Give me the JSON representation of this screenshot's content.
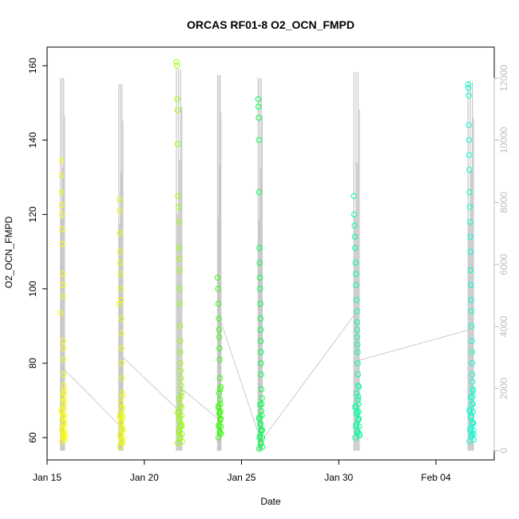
{
  "chart_data": {
    "type": "scatter",
    "title": "ORCAS RF01-8 O2_OCN_FMPD",
    "xlabel": "Date",
    "ylabel": "O2_OCN_FMPD",
    "xlim": [
      "2016-01-15T00:00",
      "2016-02-07T00:00"
    ],
    "ylim": [
      54,
      165
    ],
    "y2lim": [
      -300,
      13000
    ],
    "x_ticks": [
      {
        "label": "Jan 15",
        "date": "2016-01-15"
      },
      {
        "label": "Jan 20",
        "date": "2016-01-20"
      },
      {
        "label": "Jan 25",
        "date": "2016-01-25"
      },
      {
        "label": "Jan 30",
        "date": "2016-01-30"
      },
      {
        "label": "Feb 04",
        "date": "2016-02-04"
      }
    ],
    "y_ticks": [
      60,
      80,
      100,
      120,
      140,
      160
    ],
    "y2_ticks": [
      0,
      2000,
      4000,
      6000,
      8000,
      10000,
      12000
    ],
    "y2_color": "#bdbdbd",
    "grid": false,
    "series": [
      {
        "color": "#ffff00",
        "date": "2016-01-15",
        "x_range": [
          "2016-01-15T16:00",
          "2016-01-15T22:00"
        ],
        "y_min": 59,
        "y_max": 135,
        "y2_max": 12000,
        "points": [
          [
            0.1,
            93.5
          ],
          [
            0.2,
            134.5
          ],
          [
            0.25,
            130.5
          ],
          [
            0.28,
            126
          ],
          [
            0.32,
            122.5
          ],
          [
            0.35,
            120
          ],
          [
            0.4,
            116
          ],
          [
            0.45,
            112
          ],
          [
            0.5,
            104
          ],
          [
            0.55,
            101
          ],
          [
            0.6,
            98
          ],
          [
            0.62,
            86
          ],
          [
            0.65,
            84
          ],
          [
            0.7,
            81
          ],
          [
            0.72,
            77
          ],
          [
            0.75,
            74
          ],
          [
            0.78,
            72
          ],
          [
            0.8,
            70
          ],
          [
            0.82,
            68
          ],
          [
            0.85,
            66
          ],
          [
            0.88,
            64
          ],
          [
            0.9,
            62
          ],
          [
            0.93,
            61
          ],
          [
            0.95,
            60
          ],
          [
            0.97,
            59.5
          ]
        ]
      },
      {
        "color": "#eeff00",
        "date": "2016-01-18",
        "x_range": [
          "2016-01-18T16:00",
          "2016-01-18T22:00"
        ],
        "y_min": 57.5,
        "y_max": 124,
        "y2_max": 11800,
        "points": [
          [
            0.1,
            96
          ],
          [
            0.2,
            124
          ],
          [
            0.25,
            121
          ],
          [
            0.3,
            115
          ],
          [
            0.35,
            110
          ],
          [
            0.4,
            107
          ],
          [
            0.45,
            104
          ],
          [
            0.5,
            100
          ],
          [
            0.55,
            97
          ],
          [
            0.6,
            92
          ],
          [
            0.62,
            88
          ],
          [
            0.65,
            84
          ],
          [
            0.7,
            80
          ],
          [
            0.75,
            76
          ],
          [
            0.78,
            72
          ],
          [
            0.8,
            68
          ],
          [
            0.83,
            66
          ],
          [
            0.86,
            65
          ],
          [
            0.9,
            62
          ],
          [
            0.93,
            60
          ],
          [
            0.96,
            58.5
          ]
        ]
      },
      {
        "color": "#99ff00",
        "date": "2016-01-21",
        "x_range": [
          "2016-01-21T15:00",
          "2016-01-21T23:00"
        ],
        "y_min": 58.5,
        "y_max": 161,
        "y2_max": 12300,
        "points": [
          [
            0.1,
            161
          ],
          [
            0.15,
            160
          ],
          [
            0.2,
            151
          ],
          [
            0.25,
            148
          ],
          [
            0.3,
            139
          ],
          [
            0.35,
            125
          ],
          [
            0.4,
            122
          ],
          [
            0.45,
            118
          ],
          [
            0.5,
            111
          ],
          [
            0.55,
            108
          ],
          [
            0.58,
            105
          ],
          [
            0.6,
            100
          ],
          [
            0.63,
            96
          ],
          [
            0.65,
            90
          ],
          [
            0.68,
            86
          ],
          [
            0.7,
            83
          ],
          [
            0.72,
            80
          ],
          [
            0.75,
            78
          ],
          [
            0.78,
            76
          ],
          [
            0.8,
            74
          ],
          [
            0.82,
            71
          ],
          [
            0.85,
            68
          ],
          [
            0.88,
            66
          ],
          [
            0.9,
            63
          ],
          [
            0.93,
            61
          ],
          [
            0.96,
            59
          ]
        ]
      },
      {
        "color": "#33ff00",
        "date": "2016-01-23",
        "x_range": [
          "2016-01-23T18:00",
          "2016-01-23T23:00"
        ],
        "y_min": 60,
        "y_max": 103,
        "y2_max": 12100,
        "points": [
          [
            0.1,
            103
          ],
          [
            0.2,
            100
          ],
          [
            0.3,
            96
          ],
          [
            0.4,
            92
          ],
          [
            0.45,
            89
          ],
          [
            0.5,
            87
          ],
          [
            0.55,
            84
          ],
          [
            0.6,
            81
          ],
          [
            0.65,
            76
          ],
          [
            0.7,
            73
          ],
          [
            0.75,
            69
          ],
          [
            0.8,
            67
          ],
          [
            0.85,
            65
          ],
          [
            0.9,
            63
          ],
          [
            0.95,
            61
          ]
        ]
      },
      {
        "color": "#00ff4d",
        "date": "2016-01-25",
        "x_range": [
          "2016-01-25T20:00",
          "2016-01-26T02:00"
        ],
        "y_min": 57,
        "y_max": 151,
        "y2_max": 12000,
        "points": [
          [
            0.1,
            151
          ],
          [
            0.15,
            149
          ],
          [
            0.2,
            146
          ],
          [
            0.25,
            140
          ],
          [
            0.3,
            126
          ],
          [
            0.35,
            111
          ],
          [
            0.4,
            107
          ],
          [
            0.45,
            103
          ],
          [
            0.5,
            100
          ],
          [
            0.55,
            96
          ],
          [
            0.58,
            92
          ],
          [
            0.6,
            89
          ],
          [
            0.63,
            86
          ],
          [
            0.65,
            83
          ],
          [
            0.68,
            80
          ],
          [
            0.7,
            77
          ],
          [
            0.75,
            73
          ],
          [
            0.8,
            69
          ],
          [
            0.85,
            66
          ],
          [
            0.9,
            62
          ],
          [
            0.93,
            60
          ],
          [
            0.96,
            57.5
          ]
        ]
      },
      {
        "color": "#00ffa0",
        "date": "2016-01-30",
        "x_range": [
          "2016-01-30T18:00",
          "2016-01-31T02:00"
        ],
        "y_min": 60,
        "y_max": 125,
        "y2_max": 12200,
        "points": [
          [
            0.1,
            125
          ],
          [
            0.15,
            120
          ],
          [
            0.2,
            117
          ],
          [
            0.25,
            114
          ],
          [
            0.3,
            111
          ],
          [
            0.35,
            107
          ],
          [
            0.4,
            104
          ],
          [
            0.45,
            101
          ],
          [
            0.5,
            97
          ],
          [
            0.55,
            94
          ],
          [
            0.58,
            91
          ],
          [
            0.6,
            89
          ],
          [
            0.62,
            87
          ],
          [
            0.65,
            85
          ],
          [
            0.68,
            83
          ],
          [
            0.7,
            80
          ],
          [
            0.72,
            77
          ],
          [
            0.75,
            74
          ],
          [
            0.78,
            71
          ],
          [
            0.8,
            69
          ],
          [
            0.83,
            67
          ],
          [
            0.86,
            65
          ],
          [
            0.9,
            63
          ],
          [
            0.93,
            61
          ],
          [
            0.96,
            60.5
          ]
        ]
      },
      {
        "color": "#00ffd0",
        "date": "2016-02-05",
        "x_range": [
          "2016-02-05T15:00",
          "2016-02-05T23:00"
        ],
        "y_min": 59,
        "y_max": 155,
        "y2_max": 11900,
        "points": [
          [
            0.1,
            155
          ],
          [
            0.15,
            154
          ],
          [
            0.18,
            152
          ],
          [
            0.2,
            144
          ],
          [
            0.25,
            140
          ],
          [
            0.28,
            136
          ],
          [
            0.3,
            132
          ],
          [
            0.33,
            126
          ],
          [
            0.35,
            122
          ],
          [
            0.4,
            118
          ],
          [
            0.43,
            114
          ],
          [
            0.45,
            110
          ],
          [
            0.5,
            105
          ],
          [
            0.55,
            101
          ],
          [
            0.58,
            97
          ],
          [
            0.6,
            94
          ],
          [
            0.62,
            90
          ],
          [
            0.65,
            86
          ],
          [
            0.68,
            83
          ],
          [
            0.7,
            80
          ],
          [
            0.72,
            77
          ],
          [
            0.75,
            75
          ],
          [
            0.78,
            73
          ],
          [
            0.8,
            71
          ],
          [
            0.83,
            69
          ],
          [
            0.85,
            67
          ],
          [
            0.88,
            64
          ],
          [
            0.9,
            62
          ],
          [
            0.93,
            61
          ],
          [
            0.96,
            59.5
          ]
        ]
      }
    ],
    "connector_line": {
      "color": "#bdbdbd",
      "points": [
        [
          "2016-01-15T18:00",
          2700
        ],
        [
          "2016-01-18T18:00",
          800
        ],
        [
          "2016-01-18T22:00",
          3000
        ],
        [
          "2016-01-21T18:00",
          1300
        ],
        [
          "2016-01-21T22:00",
          2000
        ],
        [
          "2016-01-23T20:00",
          1000
        ],
        [
          "2016-01-23T22:00",
          4200
        ],
        [
          "2016-01-26T00:00",
          300
        ],
        [
          "2016-01-30T20:00",
          4400
        ],
        [
          "2016-01-31T00:00",
          2900
        ],
        [
          "2016-02-05T18:00",
          3900
        ]
      ]
    }
  }
}
